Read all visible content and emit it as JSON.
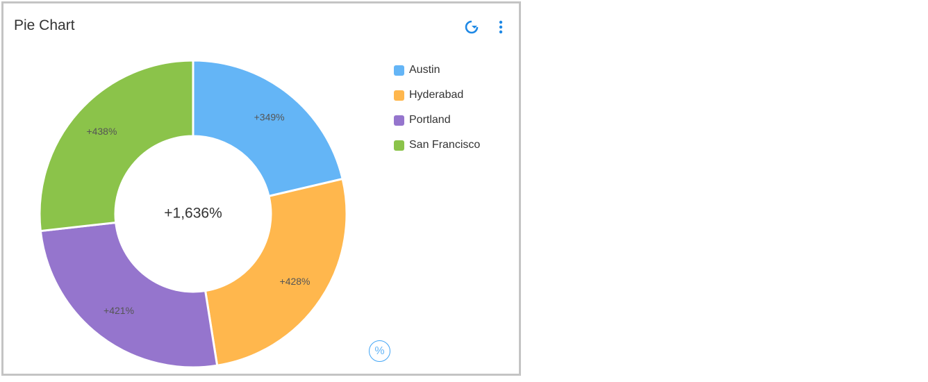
{
  "header": {
    "title": "Pie Chart",
    "refresh_icon": "refresh-icon",
    "more_icon": "more-vert-icon"
  },
  "percent_toggle": {
    "label": "%"
  },
  "chart_data": {
    "type": "pie",
    "donut": true,
    "title": "",
    "center_label": "+1,636%",
    "categories": [
      "Austin",
      "Hyderabad",
      "Portland",
      "San Francisco"
    ],
    "values": [
      349,
      428,
      421,
      438
    ],
    "labels": [
      "+349%",
      "+428%",
      "+421%",
      "+438%"
    ],
    "colors": [
      "#64b5f6",
      "#ffb74d",
      "#9575cd",
      "#8bc34a"
    ],
    "legend_position": "right"
  }
}
